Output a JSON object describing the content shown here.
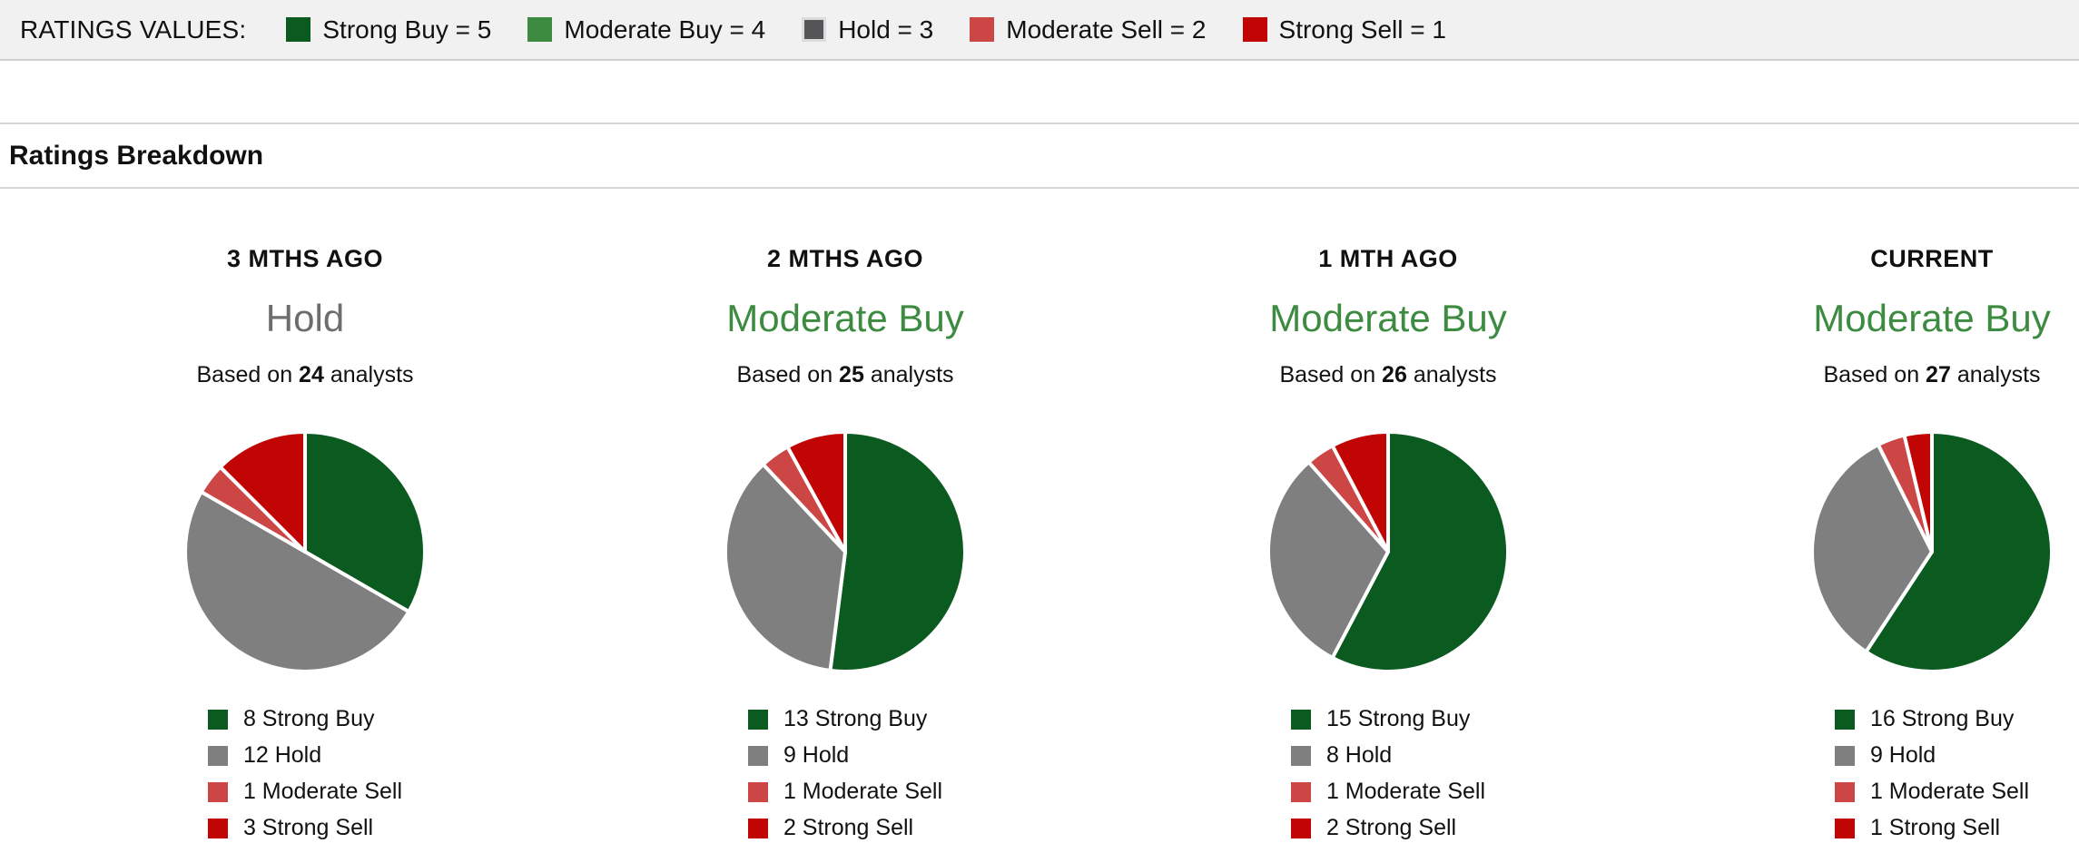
{
  "ratings_values_bar": {
    "label": "RATINGS VALUES:",
    "items": [
      {
        "name": "strong-buy",
        "label": "Strong Buy = 5",
        "color": "#0b5a20"
      },
      {
        "name": "moderate-buy",
        "label": "Moderate Buy = 4",
        "color": "#3d8b40"
      },
      {
        "name": "hold",
        "label": "Hold = 3",
        "color": "#565658"
      },
      {
        "name": "moderate-sell",
        "label": "Moderate Sell = 2",
        "color": "#cd4646"
      },
      {
        "name": "strong-sell",
        "label": "Strong Sell = 1",
        "color": "#c10505"
      }
    ]
  },
  "section_title": "Ratings Breakdown",
  "columns": [
    {
      "period": "3 MTHS AGO",
      "consensus": "Hold",
      "consensus_color": "#6d6d6d",
      "based_prefix": "Based on",
      "analyst_count": "24",
      "based_suffix": "analysts",
      "legend": [
        {
          "label": "8 Strong Buy",
          "color": "#0b5a20"
        },
        {
          "label": "12 Hold",
          "color": "#7f7f7f"
        },
        {
          "label": "1 Moderate Sell",
          "color": "#cd4646"
        },
        {
          "label": "3 Strong Sell",
          "color": "#c10505"
        }
      ]
    },
    {
      "period": "2 MTHS AGO",
      "consensus": "Moderate Buy",
      "consensus_color": "#3d8b40",
      "based_prefix": "Based on",
      "analyst_count": "25",
      "based_suffix": "analysts",
      "legend": [
        {
          "label": "13 Strong Buy",
          "color": "#0b5a20"
        },
        {
          "label": "9 Hold",
          "color": "#7f7f7f"
        },
        {
          "label": "1 Moderate Sell",
          "color": "#cd4646"
        },
        {
          "label": "2 Strong Sell",
          "color": "#c10505"
        }
      ]
    },
    {
      "period": "1 MTH AGO",
      "consensus": "Moderate Buy",
      "consensus_color": "#3d8b40",
      "based_prefix": "Based on",
      "analyst_count": "26",
      "based_suffix": "analysts",
      "legend": [
        {
          "label": "15 Strong Buy",
          "color": "#0b5a20"
        },
        {
          "label": "8 Hold",
          "color": "#7f7f7f"
        },
        {
          "label": "1 Moderate Sell",
          "color": "#cd4646"
        },
        {
          "label": "2 Strong Sell",
          "color": "#c10505"
        }
      ]
    },
    {
      "period": "CURRENT",
      "consensus": "Moderate Buy",
      "consensus_color": "#3d8b40",
      "based_prefix": "Based on",
      "analyst_count": "27",
      "based_suffix": "analysts",
      "legend": [
        {
          "label": "16 Strong Buy",
          "color": "#0b5a20"
        },
        {
          "label": "9 Hold",
          "color": "#7f7f7f"
        },
        {
          "label": "1 Moderate Sell",
          "color": "#cd4646"
        },
        {
          "label": "1 Strong Sell",
          "color": "#c10505"
        }
      ]
    }
  ],
  "chart_data": [
    {
      "type": "pie",
      "title": "3 MTHS AGO",
      "categories": [
        "Strong Buy",
        "Hold",
        "Moderate Sell",
        "Strong Sell"
      ],
      "values": [
        8,
        12,
        1,
        3
      ],
      "total_analysts": 24,
      "colors": [
        "#0b5a20",
        "#7f7f7f",
        "#cd4646",
        "#c10505"
      ],
      "start_angle_deg": 0,
      "direction": "clockwise",
      "legend_position": "bottom"
    },
    {
      "type": "pie",
      "title": "2 MTHS AGO",
      "categories": [
        "Strong Buy",
        "Hold",
        "Moderate Sell",
        "Strong Sell"
      ],
      "values": [
        13,
        9,
        1,
        2
      ],
      "total_analysts": 25,
      "colors": [
        "#0b5a20",
        "#7f7f7f",
        "#cd4646",
        "#c10505"
      ],
      "start_angle_deg": 0,
      "direction": "clockwise",
      "legend_position": "bottom"
    },
    {
      "type": "pie",
      "title": "1 MTH AGO",
      "categories": [
        "Strong Buy",
        "Hold",
        "Moderate Sell",
        "Strong Sell"
      ],
      "values": [
        15,
        8,
        1,
        2
      ],
      "total_analysts": 26,
      "colors": [
        "#0b5a20",
        "#7f7f7f",
        "#cd4646",
        "#c10505"
      ],
      "start_angle_deg": 0,
      "direction": "clockwise",
      "legend_position": "bottom"
    },
    {
      "type": "pie",
      "title": "CURRENT",
      "categories": [
        "Strong Buy",
        "Hold",
        "Moderate Sell",
        "Strong Sell"
      ],
      "values": [
        16,
        9,
        1,
        1
      ],
      "total_analysts": 27,
      "colors": [
        "#0b5a20",
        "#7f7f7f",
        "#cd4646",
        "#c10505"
      ],
      "start_angle_deg": 0,
      "direction": "clockwise",
      "legend_position": "bottom"
    }
  ]
}
